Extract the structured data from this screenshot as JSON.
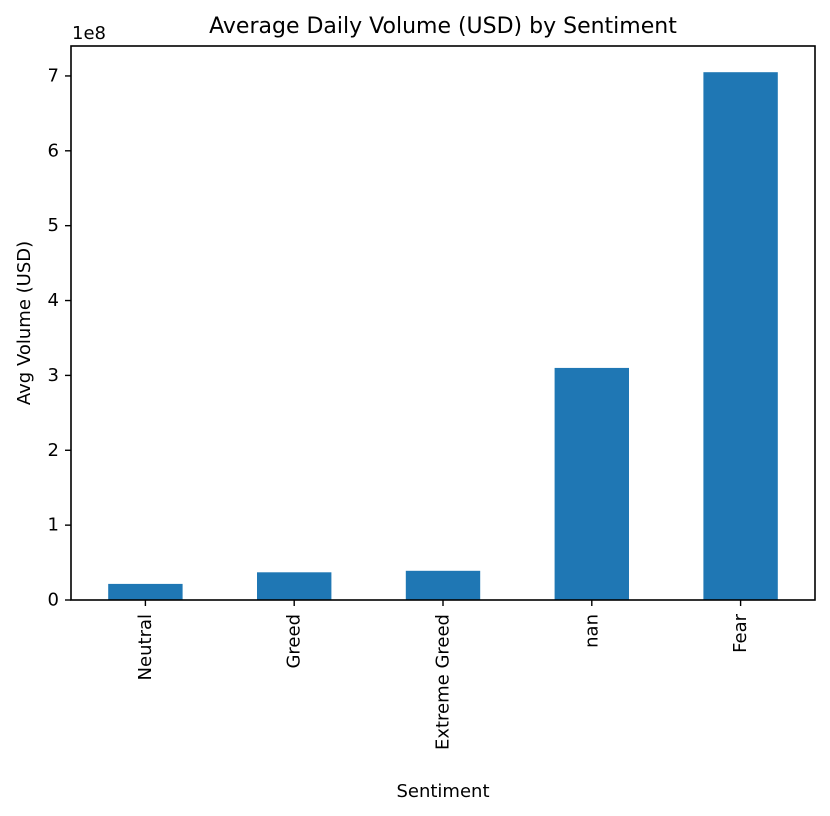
{
  "chart_data": {
    "type": "bar",
    "title": "Average Daily Volume (USD) by Sentiment",
    "xlabel": "Sentiment",
    "ylabel": "Avg Volume (USD)",
    "y_offset_label": "1e8",
    "categories": [
      "Neutral",
      "Greed",
      "Extreme Greed",
      "nan",
      "Fear"
    ],
    "values": [
      21500000,
      37000000,
      39000000,
      310000000,
      705000000
    ],
    "ylim": [
      0,
      740000000
    ],
    "yticks": [
      0,
      1,
      2,
      3,
      4,
      5,
      6,
      7
    ],
    "ytick_scale": 100000000,
    "bar_color": "#1f77b4",
    "grid": false,
    "legend": false
  }
}
